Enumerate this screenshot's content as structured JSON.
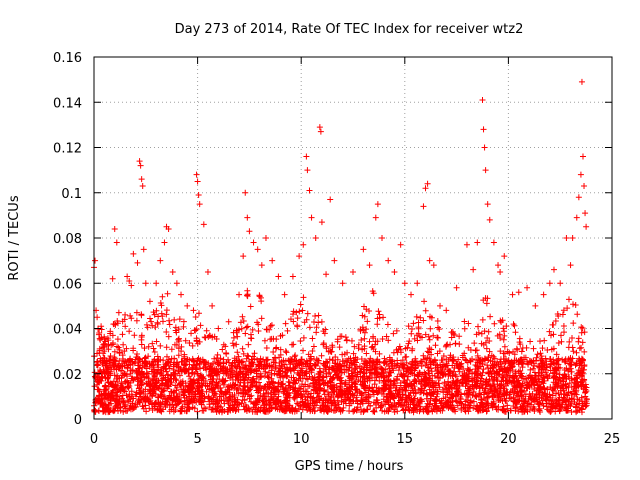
{
  "chart_data": {
    "type": "scatter",
    "title": "Day 273 of 2014, Rate Of TEC Index for receiver wtz2",
    "xlabel": "GPS time / hours",
    "ylabel": "ROTI / TECUs",
    "xlim": [
      0,
      25
    ],
    "ylim": [
      0,
      0.16
    ],
    "xticks": [
      0,
      5,
      10,
      15,
      20,
      25
    ],
    "yticks": [
      0,
      0.02,
      0.04,
      0.06,
      0.08,
      0.1,
      0.12,
      0.14,
      0.16
    ],
    "xtick_labels": [
      "0",
      "5",
      "10",
      "15",
      "20",
      "25"
    ],
    "ytick_labels": [
      "0",
      "0.02",
      "0.04",
      "0.06",
      "0.08",
      "0.1",
      "0.12",
      "0.14",
      "0.16"
    ],
    "grid": true,
    "marker": "+",
    "color": "#ff0000",
    "series": [
      {
        "name": "ROTI",
        "points": [
          [
            0.0,
            0.067
          ],
          [
            0.05,
            0.07
          ],
          [
            0.1,
            0.048
          ],
          [
            0.15,
            0.045
          ],
          [
            0.2,
            0.04
          ],
          [
            0.25,
            0.038
          ],
          [
            0.3,
            0.035
          ],
          [
            0.5,
            0.03
          ],
          [
            0.7,
            0.033
          ],
          [
            0.9,
            0.062
          ],
          [
            1.0,
            0.084
          ],
          [
            1.1,
            0.078
          ],
          [
            1.2,
            0.047
          ],
          [
            1.5,
            0.046
          ],
          [
            1.6,
            0.063
          ],
          [
            1.7,
            0.061
          ],
          [
            1.8,
            0.059
          ],
          [
            1.9,
            0.073
          ],
          [
            2.1,
            0.069
          ],
          [
            2.2,
            0.114
          ],
          [
            2.25,
            0.112
          ],
          [
            2.3,
            0.106
          ],
          [
            2.35,
            0.103
          ],
          [
            2.4,
            0.075
          ],
          [
            2.5,
            0.06
          ],
          [
            2.7,
            0.052
          ],
          [
            3.0,
            0.06
          ],
          [
            3.2,
            0.07
          ],
          [
            3.4,
            0.078
          ],
          [
            3.5,
            0.085
          ],
          [
            3.6,
            0.084
          ],
          [
            3.8,
            0.065
          ],
          [
            4.0,
            0.06
          ],
          [
            4.2,
            0.055
          ],
          [
            4.5,
            0.05
          ],
          [
            4.8,
            0.048
          ],
          [
            4.95,
            0.108
          ],
          [
            5.0,
            0.105
          ],
          [
            5.05,
            0.099
          ],
          [
            5.1,
            0.095
          ],
          [
            5.3,
            0.086
          ],
          [
            5.5,
            0.065
          ],
          [
            5.7,
            0.05
          ],
          [
            6.0,
            0.04
          ],
          [
            6.5,
            0.043
          ],
          [
            7.0,
            0.055
          ],
          [
            7.2,
            0.072
          ],
          [
            7.3,
            0.1
          ],
          [
            7.4,
            0.089
          ],
          [
            7.5,
            0.083
          ],
          [
            7.7,
            0.078
          ],
          [
            7.9,
            0.075
          ],
          [
            8.1,
            0.068
          ],
          [
            8.3,
            0.08
          ],
          [
            8.6,
            0.07
          ],
          [
            8.9,
            0.063
          ],
          [
            9.2,
            0.055
          ],
          [
            9.6,
            0.063
          ],
          [
            9.9,
            0.072
          ],
          [
            10.1,
            0.077
          ],
          [
            10.25,
            0.116
          ],
          [
            10.3,
            0.11
          ],
          [
            10.4,
            0.101
          ],
          [
            10.5,
            0.089
          ],
          [
            10.7,
            0.08
          ],
          [
            10.9,
            0.129
          ],
          [
            10.95,
            0.127
          ],
          [
            11.0,
            0.087
          ],
          [
            11.2,
            0.064
          ],
          [
            11.4,
            0.097
          ],
          [
            11.6,
            0.07
          ],
          [
            12.0,
            0.06
          ],
          [
            12.5,
            0.065
          ],
          [
            13.0,
            0.075
          ],
          [
            13.3,
            0.068
          ],
          [
            13.6,
            0.089
          ],
          [
            13.7,
            0.095
          ],
          [
            13.9,
            0.08
          ],
          [
            14.2,
            0.07
          ],
          [
            14.5,
            0.065
          ],
          [
            14.8,
            0.077
          ],
          [
            15.0,
            0.06
          ],
          [
            15.3,
            0.055
          ],
          [
            15.6,
            0.06
          ],
          [
            15.9,
            0.094
          ],
          [
            16.0,
            0.102
          ],
          [
            16.1,
            0.104
          ],
          [
            16.2,
            0.07
          ],
          [
            16.4,
            0.068
          ],
          [
            16.7,
            0.05
          ],
          [
            17.0,
            0.048
          ],
          [
            17.5,
            0.058
          ],
          [
            18.0,
            0.077
          ],
          [
            18.3,
            0.066
          ],
          [
            18.5,
            0.078
          ],
          [
            18.75,
            0.141
          ],
          [
            18.8,
            0.128
          ],
          [
            18.85,
            0.12
          ],
          [
            18.9,
            0.11
          ],
          [
            19.0,
            0.095
          ],
          [
            19.1,
            0.088
          ],
          [
            19.3,
            0.078
          ],
          [
            19.5,
            0.068
          ],
          [
            19.6,
            0.065
          ],
          [
            19.8,
            0.072
          ],
          [
            20.2,
            0.055
          ],
          [
            20.5,
            0.056
          ],
          [
            20.9,
            0.058
          ],
          [
            21.3,
            0.05
          ],
          [
            21.7,
            0.055
          ],
          [
            22.0,
            0.06
          ],
          [
            22.2,
            0.066
          ],
          [
            22.5,
            0.06
          ],
          [
            22.8,
            0.08
          ],
          [
            23.0,
            0.068
          ],
          [
            23.1,
            0.08
          ],
          [
            23.3,
            0.089
          ],
          [
            23.4,
            0.098
          ],
          [
            23.5,
            0.108
          ],
          [
            23.55,
            0.149
          ],
          [
            23.6,
            0.116
          ],
          [
            23.65,
            0.103
          ],
          [
            23.7,
            0.091
          ],
          [
            23.75,
            0.085
          ]
        ],
        "dense_band": {
          "x_range": [
            0,
            23.8
          ],
          "y_floor": 0.003,
          "y_typical": 0.02,
          "y_envelope": [
            [
              0,
              0.045
            ],
            [
              0.5,
              0.04
            ],
            [
              1,
              0.045
            ],
            [
              1.5,
              0.045
            ],
            [
              2,
              0.048
            ],
            [
              2.5,
              0.045
            ],
            [
              3,
              0.048
            ],
            [
              3.5,
              0.06
            ],
            [
              4,
              0.048
            ],
            [
              4.5,
              0.042
            ],
            [
              5,
              0.05
            ],
            [
              5.5,
              0.04
            ],
            [
              6,
              0.035
            ],
            [
              6.5,
              0.035
            ],
            [
              7,
              0.045
            ],
            [
              7.5,
              0.06
            ],
            [
              8,
              0.055
            ],
            [
              8.5,
              0.045
            ],
            [
              9,
              0.04
            ],
            [
              9.5,
              0.045
            ],
            [
              10,
              0.055
            ],
            [
              10.5,
              0.05
            ],
            [
              11,
              0.045
            ],
            [
              11.5,
              0.035
            ],
            [
              12,
              0.04
            ],
            [
              12.5,
              0.042
            ],
            [
              13,
              0.05
            ],
            [
              13.5,
              0.06
            ],
            [
              14,
              0.05
            ],
            [
              14.5,
              0.04
            ],
            [
              15,
              0.04
            ],
            [
              15.5,
              0.045
            ],
            [
              16,
              0.055
            ],
            [
              16.5,
              0.045
            ],
            [
              17,
              0.038
            ],
            [
              17.5,
              0.04
            ],
            [
              18,
              0.045
            ],
            [
              18.5,
              0.05
            ],
            [
              19,
              0.055
            ],
            [
              19.5,
              0.045
            ],
            [
              20,
              0.045
            ],
            [
              20.5,
              0.04
            ],
            [
              21,
              0.035
            ],
            [
              21.5,
              0.035
            ],
            [
              22,
              0.04
            ],
            [
              22.5,
              0.05
            ],
            [
              23,
              0.055
            ],
            [
              23.5,
              0.06
            ],
            [
              23.8,
              0.05
            ]
          ]
        }
      }
    ]
  }
}
